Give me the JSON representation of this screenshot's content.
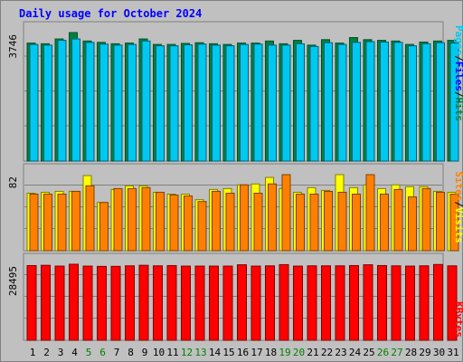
{
  "title": "Daily usage for October 2024",
  "chart_data": [
    {
      "type": "bar",
      "panel": "hits-files-pages",
      "categories": [
        "1",
        "2",
        "3",
        "4",
        "5",
        "6",
        "7",
        "8",
        "9",
        "10",
        "11",
        "12",
        "13",
        "14",
        "15",
        "16",
        "17",
        "18",
        "19",
        "20",
        "21",
        "22",
        "23",
        "24",
        "25",
        "26",
        "27",
        "28",
        "29",
        "30",
        "31"
      ],
      "weekend_days": [
        "5",
        "6",
        "12",
        "13",
        "19",
        "20",
        "26",
        "27"
      ],
      "y_tick_label": "3746",
      "ylim": [
        0,
        3746
      ],
      "legend": {
        "hits": "Hits",
        "files": "Files",
        "pages": "Pages",
        "sep": "/"
      },
      "series": [
        {
          "name": "Hits",
          "color": "#008040",
          "values": [
            3440,
            3420,
            3560,
            3746,
            3500,
            3460,
            3420,
            3440,
            3560,
            3400,
            3400,
            3430,
            3450,
            3420,
            3400,
            3440,
            3440,
            3500,
            3420,
            3520,
            3380,
            3540,
            3440,
            3600,
            3540,
            3520,
            3500,
            3400,
            3470,
            3500,
            3520
          ]
        },
        {
          "name": "Files",
          "color": "#00c8f0",
          "values": [
            3400,
            3380,
            3520,
            3560,
            3460,
            3410,
            3380,
            3400,
            3500,
            3360,
            3360,
            3390,
            3410,
            3380,
            3360,
            3400,
            3410,
            3380,
            3380,
            3420,
            3340,
            3450,
            3400,
            3460,
            3480,
            3470,
            3460,
            3360,
            3420,
            3450,
            3440
          ]
        }
      ]
    },
    {
      "type": "bar",
      "panel": "visits-sites",
      "categories": [
        "1",
        "2",
        "3",
        "4",
        "5",
        "6",
        "7",
        "8",
        "9",
        "10",
        "11",
        "12",
        "13",
        "14",
        "15",
        "16",
        "17",
        "18",
        "19",
        "20",
        "21",
        "22",
        "23",
        "24",
        "25",
        "26",
        "27",
        "28",
        "29",
        "30",
        "31"
      ],
      "y_tick_label": "82",
      "ylim": [
        0,
        82
      ],
      "legend": {
        "visits": "Visits",
        "sites": "Sites",
        "sep": "/"
      },
      "series": [
        {
          "name": "Visits",
          "color": "#ffff00",
          "values": [
            62,
            63,
            64,
            64,
            81,
            52,
            66,
            70,
            70,
            63,
            61,
            61,
            55,
            66,
            67,
            71,
            72,
            79,
            67,
            63,
            68,
            65,
            82,
            68,
            71,
            67,
            71,
            69,
            69,
            64,
            63
          ]
        },
        {
          "name": "Sites",
          "color": "#ff8000",
          "values": [
            61,
            61,
            61,
            64,
            70,
            52,
            67,
            67,
            68,
            63,
            60,
            59,
            53,
            64,
            62,
            71,
            62,
            72,
            82,
            61,
            61,
            64,
            63,
            61,
            82,
            61,
            66,
            58,
            67,
            63,
            61
          ]
        }
      ]
    },
    {
      "type": "bar",
      "panel": "kbytes",
      "categories": [
        "1",
        "2",
        "3",
        "4",
        "5",
        "6",
        "7",
        "8",
        "9",
        "10",
        "11",
        "12",
        "13",
        "14",
        "15",
        "16",
        "17",
        "18",
        "19",
        "20",
        "21",
        "22",
        "23",
        "24",
        "25",
        "26",
        "27",
        "28",
        "29",
        "30",
        "31"
      ],
      "y_tick_label": "28495",
      "ylim": [
        0,
        28495
      ],
      "legend": {
        "kbytes": "KBytes"
      },
      "series": [
        {
          "name": "KBytes",
          "color": "#ff0000",
          "values": [
            28000,
            28100,
            27800,
            28495,
            27800,
            27700,
            27700,
            27900,
            28100,
            27900,
            28000,
            27800,
            27800,
            27800,
            27800,
            28300,
            27800,
            27900,
            28350,
            27800,
            27900,
            27900,
            27900,
            28000,
            28300,
            28000,
            27900,
            27800,
            27900,
            28400,
            27900
          ]
        }
      ]
    }
  ]
}
